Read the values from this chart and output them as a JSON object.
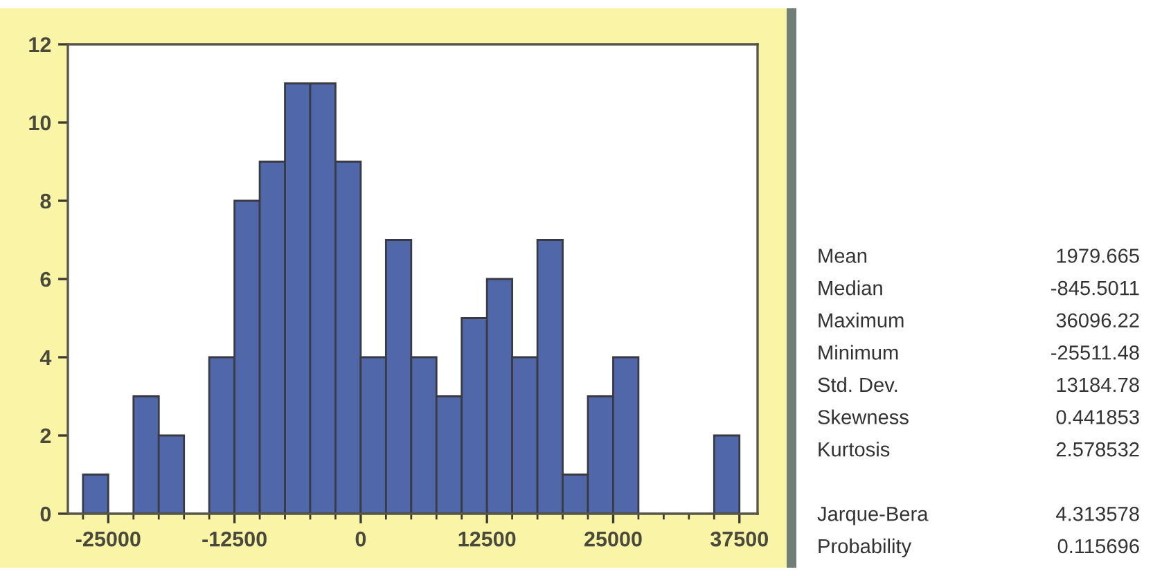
{
  "chart_data": {
    "type": "histogram",
    "bins": [
      -27500,
      -25000,
      -22500,
      -20000,
      -17500,
      -15000,
      -12500,
      -10000,
      -7500,
      -5000,
      -2500,
      0,
      2500,
      5000,
      7500,
      10000,
      12500,
      15000,
      17500,
      20000,
      22500,
      25000,
      27500,
      30000,
      32500,
      35000,
      37500
    ],
    "values": [
      1,
      0,
      3,
      2,
      0,
      4,
      8,
      9,
      11,
      11,
      9,
      4,
      7,
      4,
      3,
      5,
      6,
      4,
      7,
      1,
      3,
      4,
      0,
      0,
      0,
      2
    ],
    "color": "#5068a9",
    "xlim": [
      -29000,
      39300
    ],
    "ylim": [
      0,
      12
    ],
    "xticks": [
      {
        "value": -27500,
        "label": null
      },
      -25000,
      {
        "value": -22500,
        "label": null
      },
      {
        "value": -20000,
        "label": null
      },
      {
        "value": -17500,
        "label": null
      },
      {
        "value": -15000,
        "label": null
      },
      -12500,
      {
        "value": -10000,
        "label": null
      },
      {
        "value": -7500,
        "label": null
      },
      {
        "value": -5000,
        "label": null
      },
      {
        "value": -2500,
        "label": null
      },
      0,
      {
        "value": 2500,
        "label": null
      },
      {
        "value": 5000,
        "label": null
      },
      {
        "value": 7500,
        "label": null
      },
      {
        "value": 10000,
        "label": null
      },
      12500,
      {
        "value": 15000,
        "label": null
      },
      {
        "value": 17500,
        "label": null
      },
      {
        "value": 20000,
        "label": null
      },
      {
        "value": 22500,
        "label": null
      },
      25000,
      {
        "value": 27500,
        "label": null
      },
      {
        "value": 30000,
        "label": null
      },
      {
        "value": 32500,
        "label": null
      },
      {
        "value": 35000,
        "label": null
      },
      37500
    ],
    "yticks": [
      0,
      2,
      4,
      6,
      8,
      10,
      12
    ],
    "annotations": [
      "Mean",
      "1979.665",
      "Median",
      "-845.5011",
      "Maximum",
      "36096.22",
      "Minimum",
      "-25511.48",
      "Std. Dev.",
      "13184.78",
      "Skewness",
      "0.441853",
      "Kurtosis",
      "2.578532",
      "Jarque-Bera",
      "4.313578",
      "Probability",
      "0.115696"
    ]
  }
}
